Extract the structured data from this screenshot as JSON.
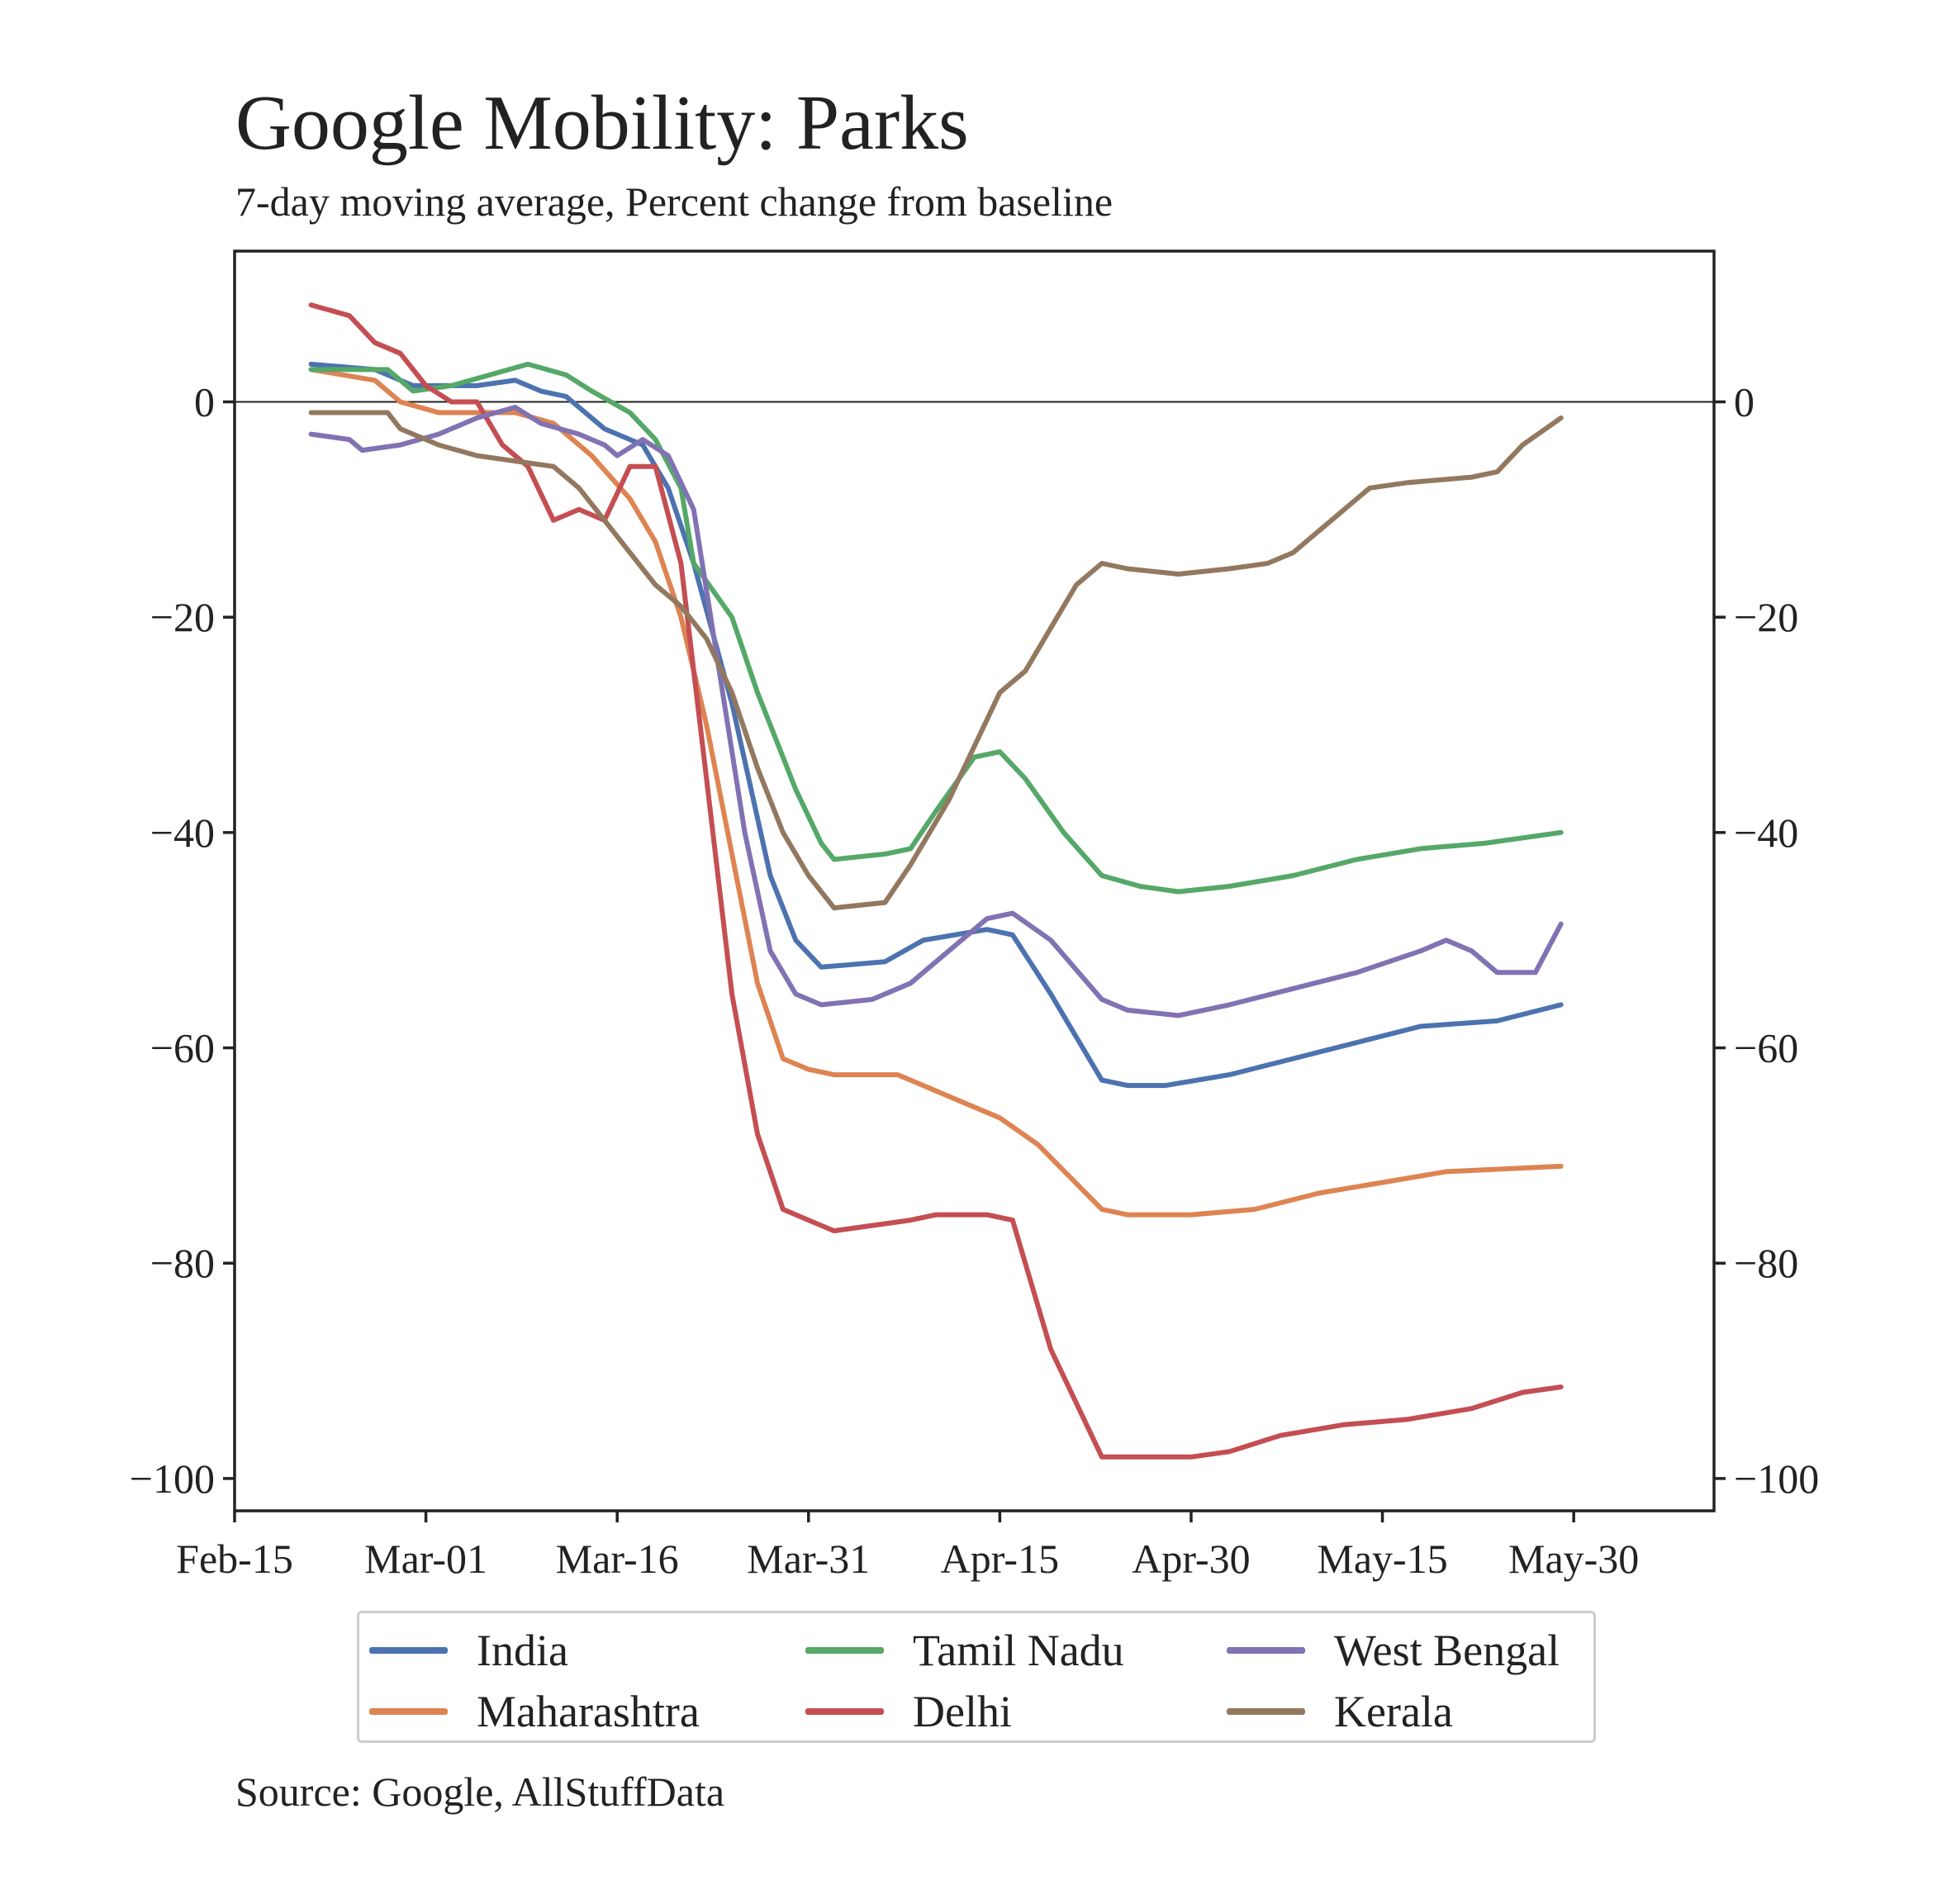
{
  "chart_data": {
    "type": "line",
    "title": "Google Mobility: Parks",
    "subtitle": "7-day moving average, Percent change from baseline",
    "source": "Source: Google, AllStuffData",
    "x_start": "Feb-15",
    "x_end": "Jun-10",
    "xticks": [
      "Feb-15",
      "Mar-01",
      "Mar-16",
      "Mar-31",
      "Apr-15",
      "Apr-30",
      "May-15",
      "May-30"
    ],
    "ylim": [
      -103,
      14
    ],
    "yticks": [
      0,
      -20,
      -40,
      -60,
      -80,
      -100
    ],
    "ytick_labels": [
      "0",
      "−20",
      "−40",
      "−60",
      "−80",
      "−100"
    ],
    "zero_line": true,
    "grid": false,
    "legend_position": "below",
    "series": [
      {
        "name": "India",
        "color": "#4c72b0",
        "points": [
          [
            "Feb-21",
            3.5
          ],
          [
            "Feb-26",
            3
          ],
          [
            "Feb-29",
            1.5
          ],
          [
            "Mar-05",
            1.5
          ],
          [
            "Mar-08",
            2
          ],
          [
            "Mar-10",
            1
          ],
          [
            "Mar-12",
            0.5
          ],
          [
            "Mar-15",
            -2.5
          ],
          [
            "Mar-18",
            -4
          ],
          [
            "Mar-20",
            -8
          ],
          [
            "Mar-22",
            -15
          ],
          [
            "Mar-25",
            -28
          ],
          [
            "Mar-28",
            -44
          ],
          [
            "Mar-30",
            -50
          ],
          [
            "Apr-01",
            -52.5
          ],
          [
            "Apr-06",
            -52
          ],
          [
            "Apr-09",
            -50
          ],
          [
            "Apr-14",
            -49
          ],
          [
            "Apr-16",
            -49.5
          ],
          [
            "Apr-19",
            -55
          ],
          [
            "Apr-23",
            -63
          ],
          [
            "Apr-25",
            -63.5
          ],
          [
            "Apr-28",
            -63.5
          ],
          [
            "May-03",
            -62.5
          ],
          [
            "May-08",
            -61
          ],
          [
            "May-13",
            -59.5
          ],
          [
            "May-18",
            -58
          ],
          [
            "May-24",
            -57.5
          ],
          [
            "May-29",
            -56
          ]
        ]
      },
      {
        "name": "Maharashtra",
        "color": "#dd8452",
        "points": [
          [
            "Feb-21",
            3
          ],
          [
            "Feb-26",
            2
          ],
          [
            "Feb-28",
            0
          ],
          [
            "Mar-02",
            -1
          ],
          [
            "Mar-08",
            -1
          ],
          [
            "Mar-11",
            -2
          ],
          [
            "Mar-14",
            -5
          ],
          [
            "Mar-17",
            -9
          ],
          [
            "Mar-19",
            -13
          ],
          [
            "Mar-21",
            -20
          ],
          [
            "Mar-23",
            -30
          ],
          [
            "Mar-25",
            -42
          ],
          [
            "Mar-27",
            -54
          ],
          [
            "Mar-29",
            -61
          ],
          [
            "Mar-31",
            -62
          ],
          [
            "Apr-02",
            -62.5
          ],
          [
            "Apr-07",
            -62.5
          ],
          [
            "Apr-10",
            -64
          ],
          [
            "Apr-15",
            -66.5
          ],
          [
            "Apr-18",
            -69
          ],
          [
            "Apr-23",
            -75
          ],
          [
            "Apr-25",
            -75.5
          ],
          [
            "Apr-30",
            -75.5
          ],
          [
            "May-05",
            -75
          ],
          [
            "May-10",
            -73.5
          ],
          [
            "May-15",
            -72.5
          ],
          [
            "May-20",
            -71.5
          ],
          [
            "May-29",
            -71
          ]
        ]
      },
      {
        "name": "Tamil Nadu",
        "color": "#55a868",
        "points": [
          [
            "Feb-21",
            3
          ],
          [
            "Feb-27",
            3
          ],
          [
            "Feb-29",
            1
          ],
          [
            "Mar-03",
            1.5
          ],
          [
            "Mar-06",
            2.5
          ],
          [
            "Mar-09",
            3.5
          ],
          [
            "Mar-12",
            2.5
          ],
          [
            "Mar-14",
            1
          ],
          [
            "Mar-17",
            -1
          ],
          [
            "Mar-19",
            -3.5
          ],
          [
            "Mar-21",
            -8
          ],
          [
            "Mar-22",
            -15
          ],
          [
            "Mar-25",
            -20
          ],
          [
            "Mar-27",
            -27
          ],
          [
            "Mar-30",
            -36
          ],
          [
            "Apr-01",
            -41
          ],
          [
            "Apr-02",
            -42.5
          ],
          [
            "Apr-06",
            -42
          ],
          [
            "Apr-08",
            -41.5
          ],
          [
            "Apr-10",
            -38
          ],
          [
            "Apr-13",
            -33
          ],
          [
            "Apr-15",
            -32.5
          ],
          [
            "Apr-17",
            -35
          ],
          [
            "Apr-20",
            -40
          ],
          [
            "Apr-23",
            -44
          ],
          [
            "Apr-26",
            -45
          ],
          [
            "Apr-29",
            -45.5
          ],
          [
            "May-03",
            -45
          ],
          [
            "May-08",
            -44
          ],
          [
            "May-13",
            -42.5
          ],
          [
            "May-18",
            -41.5
          ],
          [
            "May-23",
            -41
          ],
          [
            "May-29",
            -40
          ]
        ]
      },
      {
        "name": "Delhi",
        "color": "#c44e52",
        "points": [
          [
            "Feb-21",
            9
          ],
          [
            "Feb-24",
            8
          ],
          [
            "Feb-26",
            5.5
          ],
          [
            "Feb-28",
            4.5
          ],
          [
            "Mar-01",
            1.5
          ],
          [
            "Mar-03",
            0
          ],
          [
            "Mar-05",
            0
          ],
          [
            "Mar-07",
            -4
          ],
          [
            "Mar-09",
            -6
          ],
          [
            "Mar-11",
            -11
          ],
          [
            "Mar-13",
            -10
          ],
          [
            "Mar-15",
            -11
          ],
          [
            "Mar-17",
            -6
          ],
          [
            "Mar-19",
            -6
          ],
          [
            "Mar-21",
            -15
          ],
          [
            "Mar-23",
            -35
          ],
          [
            "Mar-25",
            -55
          ],
          [
            "Mar-27",
            -68
          ],
          [
            "Mar-29",
            -75
          ],
          [
            "Mar-31",
            -76
          ],
          [
            "Apr-02",
            -77
          ],
          [
            "Apr-05",
            -76.5
          ],
          [
            "Apr-08",
            -76
          ],
          [
            "Apr-10",
            -75.5
          ],
          [
            "Apr-14",
            -75.5
          ],
          [
            "Apr-16",
            -76
          ],
          [
            "Apr-19",
            -88
          ],
          [
            "Apr-23",
            -98
          ],
          [
            "Apr-25",
            -98
          ],
          [
            "Apr-30",
            -98
          ],
          [
            "May-03",
            -97.5
          ],
          [
            "May-07",
            -96
          ],
          [
            "May-12",
            -95
          ],
          [
            "May-17",
            -94.5
          ],
          [
            "May-22",
            -93.5
          ],
          [
            "May-26",
            -92
          ],
          [
            "May-29",
            -91.5
          ]
        ]
      },
      {
        "name": "West Bengal",
        "color": "#8172b3",
        "points": [
          [
            "Feb-21",
            -3
          ],
          [
            "Feb-24",
            -3.5
          ],
          [
            "Feb-25",
            -4.5
          ],
          [
            "Feb-28",
            -4
          ],
          [
            "Mar-02",
            -3
          ],
          [
            "Mar-05",
            -1.5
          ],
          [
            "Mar-08",
            -0.5
          ],
          [
            "Mar-10",
            -2
          ],
          [
            "Mar-13",
            -3
          ],
          [
            "Mar-15",
            -4
          ],
          [
            "Mar-16",
            -5
          ],
          [
            "Mar-18",
            -3.5
          ],
          [
            "Mar-20",
            -5
          ],
          [
            "Mar-22",
            -10
          ],
          [
            "Mar-24",
            -25
          ],
          [
            "Mar-26",
            -40
          ],
          [
            "Mar-28",
            -51
          ],
          [
            "Mar-30",
            -55
          ],
          [
            "Apr-01",
            -56
          ],
          [
            "Apr-05",
            -55.5
          ],
          [
            "Apr-08",
            -54
          ],
          [
            "Apr-11",
            -51
          ],
          [
            "Apr-14",
            -48
          ],
          [
            "Apr-16",
            -47.5
          ],
          [
            "Apr-19",
            -50
          ],
          [
            "Apr-23",
            -55.5
          ],
          [
            "Apr-25",
            -56.5
          ],
          [
            "Apr-29",
            -57
          ],
          [
            "May-03",
            -56
          ],
          [
            "May-08",
            -54.5
          ],
          [
            "May-13",
            -53
          ],
          [
            "May-18",
            -51
          ],
          [
            "May-20",
            -50
          ],
          [
            "May-22",
            -51
          ],
          [
            "May-24",
            -53
          ],
          [
            "May-27",
            -53
          ],
          [
            "May-29",
            -48.5
          ]
        ]
      },
      {
        "name": "Kerala",
        "color": "#937860",
        "points": [
          [
            "Feb-21",
            -1
          ],
          [
            "Feb-27",
            -1
          ],
          [
            "Feb-28",
            -2.5
          ],
          [
            "Mar-02",
            -4
          ],
          [
            "Mar-05",
            -5
          ],
          [
            "Mar-08",
            -5.5
          ],
          [
            "Mar-11",
            -6
          ],
          [
            "Mar-13",
            -8
          ],
          [
            "Mar-15",
            -11
          ],
          [
            "Mar-17",
            -14
          ],
          [
            "Mar-19",
            -17
          ],
          [
            "Mar-21",
            -19
          ],
          [
            "Mar-23",
            -22
          ],
          [
            "Mar-25",
            -27
          ],
          [
            "Mar-27",
            -34
          ],
          [
            "Mar-29",
            -40
          ],
          [
            "Mar-31",
            -44
          ],
          [
            "Apr-02",
            -47
          ],
          [
            "Apr-06",
            -46.5
          ],
          [
            "Apr-08",
            -43
          ],
          [
            "Apr-11",
            -37
          ],
          [
            "Apr-13",
            -32
          ],
          [
            "Apr-15",
            -27
          ],
          [
            "Apr-17",
            -25
          ],
          [
            "Apr-19",
            -21
          ],
          [
            "Apr-21",
            -17
          ],
          [
            "Apr-23",
            -15
          ],
          [
            "Apr-25",
            -15.5
          ],
          [
            "Apr-29",
            -16
          ],
          [
            "May-03",
            -15.5
          ],
          [
            "May-06",
            -15
          ],
          [
            "May-08",
            -14
          ],
          [
            "May-11",
            -11
          ],
          [
            "May-14",
            -8
          ],
          [
            "May-17",
            -7.5
          ],
          [
            "May-22",
            -7
          ],
          [
            "May-24",
            -6.5
          ],
          [
            "May-26",
            -4
          ],
          [
            "May-29",
            -1.5
          ]
        ]
      }
    ]
  }
}
